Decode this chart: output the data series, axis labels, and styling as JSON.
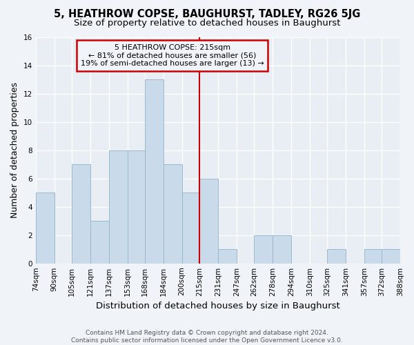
{
  "title": "5, HEATHROW COPSE, BAUGHURST, TADLEY, RG26 5JG",
  "subtitle": "Size of property relative to detached houses in Baughurst",
  "xlabel": "Distribution of detached houses by size in Baughurst",
  "ylabel": "Number of detached properties",
  "bar_edges": [
    74,
    90,
    105,
    121,
    137,
    153,
    168,
    184,
    200,
    215,
    231,
    247,
    262,
    278,
    294,
    310,
    325,
    341,
    357,
    372,
    388
  ],
  "bar_heights": [
    5,
    0,
    7,
    3,
    8,
    8,
    13,
    7,
    5,
    6,
    1,
    0,
    2,
    2,
    0,
    0,
    1,
    0,
    1,
    1
  ],
  "bar_color": "#c9daea",
  "bar_edgecolor": "#9ab8cc",
  "vline_x": 215,
  "vline_color": "#cc0000",
  "annotation_line1": "5 HEATHROW COPSE: 215sqm",
  "annotation_line2": "← 81% of detached houses are smaller (56)",
  "annotation_line3": "19% of semi-detached houses are larger (13) →",
  "ylim": [
    0,
    16
  ],
  "yticks": [
    0,
    2,
    4,
    6,
    8,
    10,
    12,
    14,
    16
  ],
  "tick_labels": [
    "74sqm",
    "90sqm",
    "105sqm",
    "121sqm",
    "137sqm",
    "153sqm",
    "168sqm",
    "184sqm",
    "200sqm",
    "215sqm",
    "231sqm",
    "247sqm",
    "262sqm",
    "278sqm",
    "294sqm",
    "310sqm",
    "325sqm",
    "341sqm",
    "357sqm",
    "372sqm",
    "388sqm"
  ],
  "footer_text": "Contains HM Land Registry data © Crown copyright and database right 2024.\nContains public sector information licensed under the Open Government Licence v3.0.",
  "background_color": "#f0f4f8",
  "plot_bg_color": "#e8eef4",
  "grid_color": "#ffffff",
  "title_fontsize": 10.5,
  "subtitle_fontsize": 9.5,
  "axis_label_fontsize": 9,
  "tick_fontsize": 7.5,
  "footer_fontsize": 6.5
}
